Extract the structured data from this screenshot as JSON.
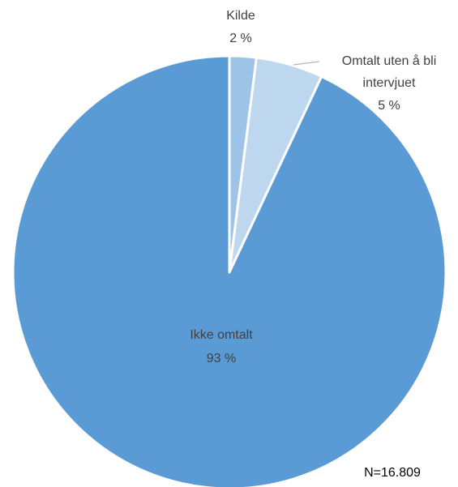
{
  "chart_data": {
    "type": "pie",
    "title": "",
    "slices": [
      {
        "name": "Kilde",
        "value": 2,
        "label": "2 %",
        "color": "#9dc3e6"
      },
      {
        "name": "Omtalt uten å bli intervjuet",
        "name_line1": "Omtalt uten å bli",
        "name_line2": "intervjuet",
        "value": 5,
        "label": "5 %",
        "color": "#bdd7ee"
      },
      {
        "name": "Ikke omtalt",
        "value": 93,
        "label": "93 %",
        "color": "#5b9bd5"
      }
    ],
    "note": "N=16.809",
    "start_angle": "12 o'clock",
    "direction": "clockwise",
    "legend": "none"
  }
}
